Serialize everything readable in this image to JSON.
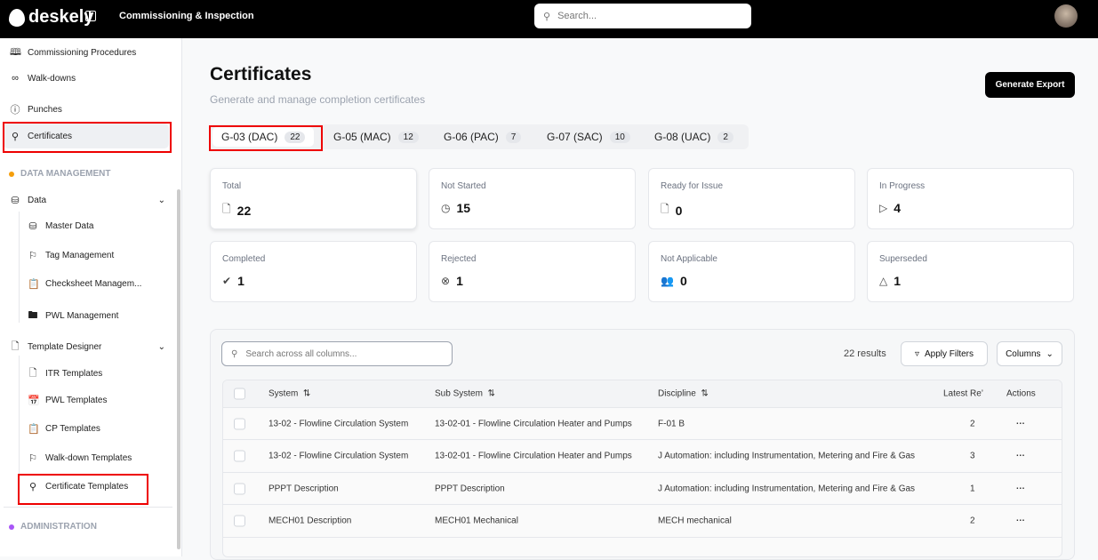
{
  "header": {
    "brand": "deskely",
    "app_title": "Commissioning & Inspection",
    "search_placeholder": "Search..."
  },
  "sidebar": {
    "items": [
      {
        "label": "Commissioning Procedures",
        "icon": "book-icon"
      },
      {
        "label": "Walk-downs",
        "icon": "footprints-icon"
      },
      {
        "label": "Punches",
        "icon": "alert-circle-icon"
      },
      {
        "label": "Certificates",
        "icon": "award-icon"
      }
    ],
    "data_management": "DATA MANAGEMENT",
    "data": {
      "label": "Data",
      "children": [
        "Master Data",
        "Tag Management",
        "Checksheet Managem...",
        "PWL Management"
      ]
    },
    "template_designer": {
      "label": "Template Designer",
      "children": [
        "ITR Templates",
        "PWL Templates",
        "CP Templates",
        "Walk-down Templates",
        "Certificate Templates"
      ]
    },
    "administration": "ADMINISTRATION"
  },
  "page": {
    "title": "Certificates",
    "subtitle": "Generate and manage completion certificates",
    "export_label": "Generate Export"
  },
  "tabs": [
    {
      "label": "G-03 (DAC)",
      "count": "22"
    },
    {
      "label": "G-05 (MAC)",
      "count": "12"
    },
    {
      "label": "G-06 (PAC)",
      "count": "7"
    },
    {
      "label": "G-07 (SAC)",
      "count": "10"
    },
    {
      "label": "G-08 (UAC)",
      "count": "2"
    }
  ],
  "stats": [
    {
      "label": "Total",
      "value": "22"
    },
    {
      "label": "Not Started",
      "value": "15"
    },
    {
      "label": "Ready for Issue",
      "value": "0"
    },
    {
      "label": "In Progress",
      "value": "4"
    },
    {
      "label": "Completed",
      "value": "1"
    },
    {
      "label": "Rejected",
      "value": "1"
    },
    {
      "label": "Not Applicable",
      "value": "0"
    },
    {
      "label": "Superseded",
      "value": "1"
    }
  ],
  "table": {
    "search_placeholder": "Search across all columns...",
    "results": "22 results",
    "apply_filters": "Apply Filters",
    "columns": "Columns",
    "headers": [
      "System",
      "Sub System",
      "Discipline",
      "Latest Re’",
      "Actions"
    ],
    "rows": [
      [
        "13-02 - Flowline Circulation System",
        "13-02-01 - Flowline Circulation Heater and Pumps",
        "F-01 B",
        "2"
      ],
      [
        "13-02 - Flowline Circulation System",
        "13-02-01 - Flowline Circulation Heater and Pumps",
        "J Automation: including Instrumentation, Metering and Fire & Gas",
        "3"
      ],
      [
        "PPPT Description",
        "PPPT Description",
        "J Automation: including Instrumentation, Metering and Fire & Gas",
        "1"
      ],
      [
        "MECH01 Description",
        "MECH01 Mechanical",
        "MECH mechanical",
        "2"
      ]
    ]
  },
  "colors": {
    "accent": "#000000",
    "highlight": "#e00000"
  }
}
